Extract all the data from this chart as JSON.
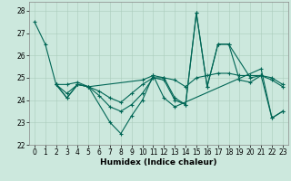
{
  "xlabel": "Humidex (Indice chaleur)",
  "bg_color": "#cce8dd",
  "grid_color": "#aaccbb",
  "line_color": "#006655",
  "xlim": [
    -0.5,
    23.5
  ],
  "ylim": [
    22.0,
    28.4
  ],
  "yticks": [
    22,
    23,
    24,
    25,
    26,
    27,
    28
  ],
  "xticks": [
    0,
    1,
    2,
    3,
    4,
    5,
    6,
    7,
    8,
    9,
    10,
    11,
    12,
    13,
    14,
    15,
    16,
    17,
    18,
    19,
    20,
    21,
    22,
    23
  ],
  "line1_x": [
    0,
    1,
    2,
    3,
    4,
    5,
    7,
    8,
    9,
    10,
    11,
    12,
    13,
    21,
    22,
    23
  ],
  "line1_y": [
    27.5,
    26.5,
    24.7,
    24.1,
    24.7,
    24.6,
    23.0,
    22.5,
    23.3,
    24.0,
    25.1,
    24.1,
    23.7,
    25.4,
    23.2,
    23.5
  ],
  "line2_x": [
    2,
    3,
    4,
    5,
    10,
    11,
    12,
    13,
    14,
    15,
    16,
    17,
    18,
    20,
    21,
    22,
    23
  ],
  "line2_y": [
    24.7,
    24.7,
    24.8,
    24.6,
    24.9,
    25.1,
    25.0,
    24.1,
    23.8,
    27.9,
    24.6,
    26.5,
    26.5,
    25.0,
    25.1,
    23.2,
    23.5
  ],
  "line3_x": [
    2,
    3,
    4,
    5,
    6,
    7,
    8,
    9,
    10,
    11,
    12,
    13,
    14,
    15,
    16,
    17,
    18,
    19,
    20,
    21,
    22,
    23
  ],
  "line3_y": [
    24.7,
    24.3,
    24.7,
    24.6,
    24.4,
    24.1,
    23.9,
    24.3,
    24.7,
    25.0,
    25.0,
    24.9,
    24.6,
    25.0,
    25.1,
    25.2,
    25.2,
    25.1,
    25.1,
    25.1,
    25.0,
    24.7
  ],
  "line4_x": [
    2,
    3,
    4,
    5,
    6,
    7,
    8,
    9,
    10,
    11,
    12,
    13,
    14,
    15,
    16,
    17,
    18,
    19,
    20,
    21,
    22,
    23
  ],
  "line4_y": [
    24.7,
    24.1,
    24.7,
    24.6,
    24.2,
    23.7,
    23.5,
    23.8,
    24.3,
    25.0,
    24.9,
    24.0,
    23.8,
    27.9,
    24.6,
    26.5,
    26.5,
    24.9,
    24.8,
    25.1,
    24.9,
    24.6
  ]
}
